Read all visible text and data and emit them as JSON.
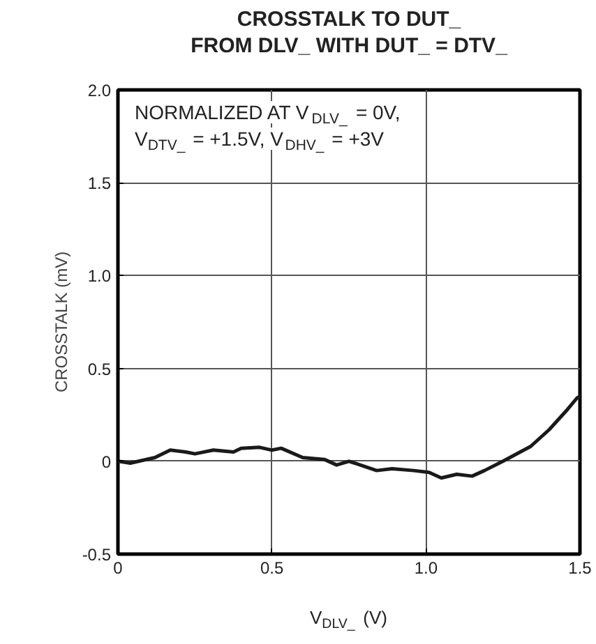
{
  "chart_data": {
    "type": "line",
    "title": "CROSSTALK TO DUT_\nFROM DLV_ WITH DUT_ = DTV_",
    "xlabel": "V$_{DLV_}$ (V)",
    "ylabel": "CROSSTALK (mV)",
    "annotations": [
      "NORMALIZED AT V$_{DLV_}$ = 0V,",
      "V$_{DTV_}$ = +1.5V, V$_{DHV_}$ = +3V"
    ],
    "x": [
      0,
      0.04,
      0.12,
      0.17,
      0.22,
      0.25,
      0.31,
      0.375,
      0.4,
      0.46,
      0.5,
      0.53,
      0.6,
      0.67,
      0.71,
      0.75,
      0.84,
      0.89,
      0.96,
      1.01,
      1.05,
      1.1,
      1.15,
      1.19,
      1.25,
      1.34,
      1.4,
      1.46,
      1.49,
      1.5
    ],
    "series": [
      {
        "color": "#1a1a1a",
        "values": [
          0,
          -0.01,
          0.02,
          0.06,
          0.05,
          0.04,
          0.06,
          0.05,
          0.07,
          0.075,
          0.06,
          0.07,
          0.02,
          0.01,
          -0.02,
          0,
          -0.05,
          -0.04,
          -0.05,
          -0.06,
          -0.09,
          -0.07,
          -0.08,
          -0.05,
          0,
          0.08,
          0.17,
          0.28,
          0.34,
          0.35
        ]
      }
    ],
    "xlim": [
      0,
      1.5
    ],
    "ylim": [
      -0.5,
      2.0
    ],
    "xticks": [
      0,
      0.5,
      {
        "value": 1.0,
        "label": "1.0"
      },
      1.5
    ],
    "yticks": [
      -0.5,
      0,
      0.5,
      {
        "value": 1.0,
        "label": "1.0"
      },
      1.5,
      {
        "value": 2.0,
        "label": "2.0"
      }
    ],
    "grid": true,
    "line_style": "solid"
  }
}
